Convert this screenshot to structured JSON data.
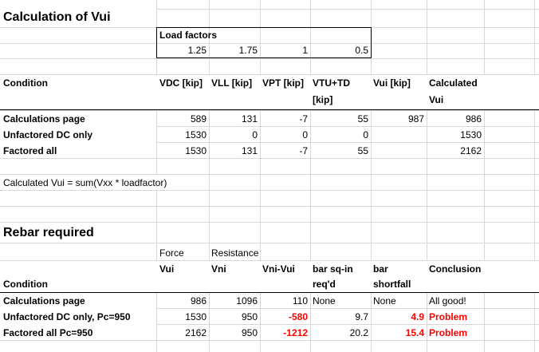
{
  "vui": {
    "title": "Calculation of Vui",
    "load_factors_label": "Load factors",
    "load_factors": [
      "1.25",
      "1.75",
      "1",
      "0.5"
    ],
    "headers": {
      "condition": "Condition",
      "vdc": "VDC [kip]",
      "vll": "VLL [kip]",
      "vpt": "VPT [kip]",
      "vtu_line1": "VTU+TD",
      "vtu_line2": "[kip]",
      "vui": "Vui [kip]",
      "calc_line1": "Calculated",
      "calc_line2": "Vui"
    },
    "rows": [
      {
        "condition": "Calculations page",
        "vdc": "589",
        "vll": "131",
        "vpt": "-7",
        "vtu": "55",
        "vui": "987",
        "calc": "986"
      },
      {
        "condition": "Unfactored DC only",
        "vdc": "1530",
        "vll": "0",
        "vpt": "0",
        "vtu": "0",
        "vui": "",
        "calc": "1530"
      },
      {
        "condition": "Factored all",
        "vdc": "1530",
        "vll": "131",
        "vpt": "-7",
        "vtu": "55",
        "vui": "",
        "calc": "2162"
      }
    ],
    "formula_note": "Calculated Vui = sum(Vxx * loadfactor)"
  },
  "rebar": {
    "title": "Rebar required",
    "headers": {
      "force": "Force",
      "vui": "Vui",
      "resistance": "Resistance",
      "vni": "Vni",
      "vni_vui": "Vni-Vui",
      "barsq_line1": "bar sq-in",
      "barsq_line2": "req'd",
      "shortfall_line1": "bar",
      "shortfall_line2": "shortfall",
      "conclusion": "Conclusion",
      "condition": "Condition"
    },
    "rows": [
      {
        "condition": "Calculations page",
        "vui": "986",
        "vni": "1096",
        "diff": "110",
        "barsq": "None",
        "shortfall": "None",
        "conclusion": "All good!"
      },
      {
        "condition": "Unfactored DC only, Pc=950",
        "vui": "1530",
        "vni": "950",
        "diff": "-580",
        "barsq": "9.7",
        "shortfall": "4.9",
        "conclusion": "Problem"
      },
      {
        "condition": "Factored all  Pc=950",
        "vui": "2162",
        "vni": "950",
        "diff": "-1212",
        "barsq": "20.2",
        "shortfall": "15.4",
        "conclusion": "Problem"
      }
    ]
  },
  "colors": {
    "problem": "#ff0000",
    "gridline": "#d8d8d8",
    "rule": "#000000"
  }
}
